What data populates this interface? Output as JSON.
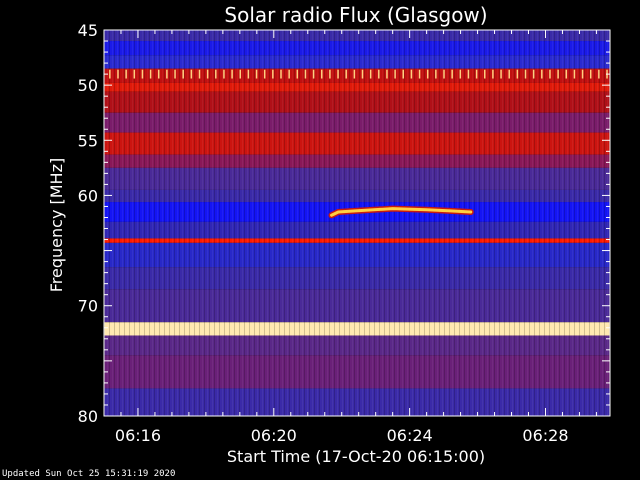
{
  "chart_data": {
    "type": "heatmap",
    "title": "Solar radio Flux (Glasgow)",
    "xlabel": "Start Time (17-Oct-20 06:15:00)",
    "ylabel": "Frequency [MHz]",
    "x_unit": "minutes after 06:15:00",
    "xlim": [
      0,
      14.9
    ],
    "ylim": [
      45,
      80
    ],
    "y_ticks": [
      45,
      50,
      55,
      60,
      65,
      70,
      75,
      80
    ],
    "y_tick_labels": [
      "45",
      "50",
      "55",
      "60",
      "",
      "70",
      "",
      "80"
    ],
    "x_ticks": [
      1,
      5,
      9,
      13
    ],
    "x_tick_labels": [
      "06:16",
      "06:20",
      "06:24",
      "06:28"
    ],
    "background_bands": [
      {
        "f0": 45.0,
        "f1": 46.0,
        "color": "#3a2aa8"
      },
      {
        "f0": 46.0,
        "f1": 47.3,
        "color": "#1a1ae8"
      },
      {
        "f0": 47.3,
        "f1": 48.5,
        "color": "#2a2ad0"
      },
      {
        "f0": 48.5,
        "f1": 49.8,
        "color": "#c01010"
      },
      {
        "f0": 49.8,
        "f1": 50.6,
        "color": "#e01a0a"
      },
      {
        "f0": 50.6,
        "f1": 52.5,
        "color": "#b01018"
      },
      {
        "f0": 52.5,
        "f1": 54.3,
        "color": "#7a1c6a"
      },
      {
        "f0": 54.3,
        "f1": 56.3,
        "color": "#cc1410"
      },
      {
        "f0": 56.3,
        "f1": 57.5,
        "color": "#8a1858"
      },
      {
        "f0": 57.5,
        "f1": 59.5,
        "color": "#4a2a98"
      },
      {
        "f0": 59.5,
        "f1": 60.6,
        "color": "#3a2aa8"
      },
      {
        "f0": 60.6,
        "f1": 62.4,
        "color": "#1414f4"
      },
      {
        "f0": 62.4,
        "f1": 63.9,
        "color": "#3026b4"
      },
      {
        "f0": 63.9,
        "f1": 64.3,
        "color": "#ff1a00"
      },
      {
        "f0": 64.3,
        "f1": 66.5,
        "color": "#2828c8"
      },
      {
        "f0": 66.5,
        "f1": 68.5,
        "color": "#3a2aa8"
      },
      {
        "f0": 68.5,
        "f1": 71.5,
        "color": "#4a2a98"
      },
      {
        "f0": 71.5,
        "f1": 72.7,
        "color": "#ffe8b0"
      },
      {
        "f0": 72.7,
        "f1": 74.5,
        "color": "#5a2888"
      },
      {
        "f0": 74.5,
        "f1": 77.5,
        "color": "#6a2078"
      },
      {
        "f0": 77.5,
        "f1": 80.0,
        "color": "#3a2aa8"
      }
    ],
    "burst": {
      "t": [
        6.7,
        6.9,
        7.4,
        8.5,
        9.5,
        10.2,
        10.8
      ],
      "f": [
        61.8,
        61.5,
        61.4,
        61.2,
        61.3,
        61.4,
        61.5
      ],
      "color": "#ffd040"
    },
    "interference_line": {
      "f": 49.0,
      "color": "#ffd080"
    },
    "colors": {
      "background": "#000000",
      "axis": "#ffffff",
      "text": "#ffffff"
    }
  },
  "footer": {
    "updated": "Updated Sun Oct 25 15:31:19 2020"
  }
}
